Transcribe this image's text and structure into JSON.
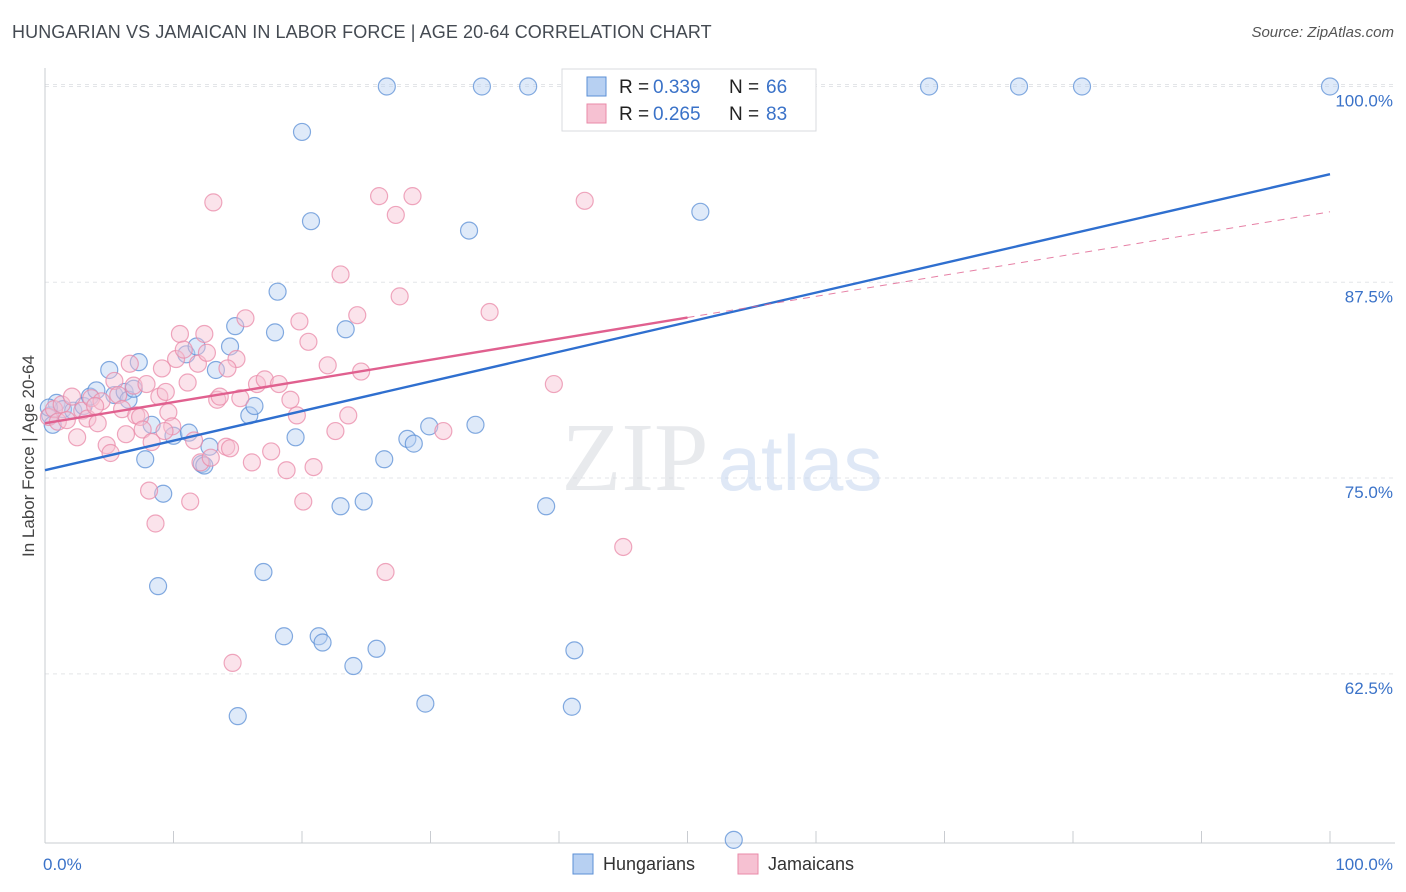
{
  "header": {
    "title": "HUNGARIAN VS JAMAICAN IN LABOR FORCE | AGE 20-64 CORRELATION CHART",
    "source": "Source: ZipAtlas.com"
  },
  "watermark": {
    "text_zip": "ZIP",
    "text_atlas": "atlas"
  },
  "chart_data": {
    "type": "scatter",
    "title": "HUNGARIAN VS JAMAICAN IN LABOR FORCE | AGE 20-64 CORRELATION CHART",
    "ylabel": "In Labor Force | Age 20-64",
    "xlabel": "",
    "xlim": [
      0,
      100
    ],
    "ylim": [
      51.7,
      101.5
    ],
    "x_tick_labels": [
      "0.0%",
      "100.0%"
    ],
    "y_ticks": [
      62.5,
      75.0,
      87.5,
      100.0
    ],
    "y_tick_labels": [
      "62.5%",
      "75.0%",
      "87.5%",
      "100.0%"
    ],
    "grid": true,
    "legend_placement": "top-center",
    "colors": {
      "hungarians": "#5b8fd6",
      "hungarians_fill": "#b7d0f2",
      "hungarians_line": "#2f6fcf",
      "jamaicans": "#e98aa8",
      "jamaicans_fill": "#f6c1d2",
      "jamaicans_line": "#e0608f",
      "tick_label": "#3a72c8"
    },
    "stats": [
      {
        "r_label": "R = ",
        "r_value": "0.339",
        "n_label": "N = ",
        "n_value": "66"
      },
      {
        "r_label": "R = ",
        "r_value": "0.265",
        "n_label": "N = ",
        "n_value": "83"
      }
    ],
    "series": [
      {
        "name": "Hungarians",
        "trend": {
          "x0": 0,
          "y0": 75.5,
          "x1": 100,
          "y1": 94.4,
          "dashed_from": null
        },
        "points": [
          [
            0.4,
            79.0
          ],
          [
            0.6,
            78.4
          ],
          [
            0.9,
            79.8
          ],
          [
            1.4,
            79.4
          ],
          [
            2.2,
            79.3
          ],
          [
            3.0,
            79.6
          ],
          [
            3.5,
            80.2
          ],
          [
            4.0,
            80.6
          ],
          [
            5.0,
            81.9
          ],
          [
            5.4,
            80.3
          ],
          [
            6.2,
            80.5
          ],
          [
            6.5,
            80.0
          ],
          [
            6.9,
            80.7
          ],
          [
            7.3,
            82.4
          ],
          [
            7.8,
            76.2
          ],
          [
            8.3,
            78.4
          ],
          [
            8.8,
            68.1
          ],
          [
            9.2,
            74.0
          ],
          [
            10.0,
            77.7
          ],
          [
            11.0,
            82.9
          ],
          [
            11.2,
            77.9
          ],
          [
            11.8,
            83.4
          ],
          [
            12.2,
            75.9
          ],
          [
            12.4,
            75.8
          ],
          [
            12.8,
            77.0
          ],
          [
            13.3,
            81.9
          ],
          [
            14.4,
            83.4
          ],
          [
            14.8,
            84.7
          ],
          [
            15.0,
            59.8
          ],
          [
            15.9,
            79.0
          ],
          [
            16.3,
            79.6
          ],
          [
            17.0,
            69.0
          ],
          [
            17.9,
            84.3
          ],
          [
            18.1,
            86.9
          ],
          [
            18.6,
            64.9
          ],
          [
            19.5,
            77.6
          ],
          [
            20.0,
            97.1
          ],
          [
            20.7,
            91.4
          ],
          [
            21.3,
            64.9
          ],
          [
            21.6,
            64.5
          ],
          [
            23.0,
            73.2
          ],
          [
            23.4,
            84.5
          ],
          [
            24.0,
            63.0
          ],
          [
            24.8,
            73.5
          ],
          [
            25.8,
            64.1
          ],
          [
            26.4,
            76.2
          ],
          [
            26.6,
            100.0
          ],
          [
            28.2,
            77.5
          ],
          [
            28.7,
            77.2
          ],
          [
            29.6,
            60.6
          ],
          [
            29.9,
            78.3
          ],
          [
            33.0,
            90.8
          ],
          [
            33.5,
            78.4
          ],
          [
            34.0,
            100.0
          ],
          [
            37.6,
            100.0
          ],
          [
            39.0,
            73.2
          ],
          [
            41.0,
            60.4
          ],
          [
            41.2,
            64.0
          ],
          [
            51.0,
            92.0
          ],
          [
            53.6,
            51.9
          ],
          [
            56.0,
            100.0
          ],
          [
            68.8,
            100.0
          ],
          [
            75.8,
            100.0
          ],
          [
            80.7,
            100.0
          ],
          [
            100.0,
            100.0
          ],
          [
            0.3,
            79.5
          ]
        ]
      },
      {
        "name": "Jamaicans",
        "trend": {
          "x0": 0,
          "y0": 78.5,
          "x1": 100,
          "y1": 92.0,
          "dashed_from": 50
        },
        "points": [
          [
            0.3,
            78.9
          ],
          [
            0.7,
            79.4
          ],
          [
            1.0,
            78.6
          ],
          [
            1.3,
            79.7
          ],
          [
            1.7,
            78.7
          ],
          [
            2.1,
            80.2
          ],
          [
            2.5,
            77.6
          ],
          [
            2.9,
            79.3
          ],
          [
            3.3,
            78.8
          ],
          [
            3.6,
            80.1
          ],
          [
            4.1,
            78.5
          ],
          [
            4.4,
            79.9
          ],
          [
            4.8,
            77.1
          ],
          [
            5.1,
            76.6
          ],
          [
            5.4,
            81.2
          ],
          [
            5.7,
            80.3
          ],
          [
            6.0,
            79.4
          ],
          [
            6.3,
            77.8
          ],
          [
            6.6,
            82.3
          ],
          [
            6.9,
            80.9
          ],
          [
            7.1,
            79.0
          ],
          [
            7.4,
            78.9
          ],
          [
            7.6,
            78.1
          ],
          [
            7.9,
            81.0
          ],
          [
            8.1,
            74.2
          ],
          [
            8.3,
            77.3
          ],
          [
            8.6,
            72.1
          ],
          [
            8.9,
            80.2
          ],
          [
            9.1,
            82.0
          ],
          [
            9.4,
            80.5
          ],
          [
            9.6,
            79.2
          ],
          [
            9.9,
            78.3
          ],
          [
            10.2,
            82.6
          ],
          [
            10.5,
            84.2
          ],
          [
            10.8,
            83.2
          ],
          [
            11.1,
            81.1
          ],
          [
            11.3,
            73.5
          ],
          [
            11.6,
            77.4
          ],
          [
            11.9,
            82.3
          ],
          [
            12.1,
            76.0
          ],
          [
            12.4,
            84.2
          ],
          [
            12.6,
            83.0
          ],
          [
            12.9,
            76.3
          ],
          [
            13.1,
            92.6
          ],
          [
            13.4,
            80.0
          ],
          [
            13.6,
            80.2
          ],
          [
            14.1,
            77.0
          ],
          [
            14.4,
            76.9
          ],
          [
            14.6,
            63.2
          ],
          [
            14.9,
            82.6
          ],
          [
            15.2,
            80.1
          ],
          [
            15.6,
            85.2
          ],
          [
            16.1,
            76.0
          ],
          [
            16.5,
            81.0
          ],
          [
            17.1,
            81.3
          ],
          [
            17.6,
            76.7
          ],
          [
            18.2,
            81.0
          ],
          [
            19.1,
            80.0
          ],
          [
            19.6,
            79.0
          ],
          [
            19.8,
            85.0
          ],
          [
            20.1,
            73.5
          ],
          [
            20.5,
            83.7
          ],
          [
            20.9,
            75.7
          ],
          [
            22.0,
            82.2
          ],
          [
            22.6,
            78.0
          ],
          [
            23.0,
            88.0
          ],
          [
            23.6,
            79.0
          ],
          [
            24.3,
            85.4
          ],
          [
            24.6,
            81.8
          ],
          [
            26.0,
            93.0
          ],
          [
            26.5,
            69.0
          ],
          [
            27.3,
            91.8
          ],
          [
            27.6,
            86.6
          ],
          [
            28.6,
            93.0
          ],
          [
            31.0,
            78.0
          ],
          [
            34.6,
            85.6
          ],
          [
            39.6,
            81.0
          ],
          [
            42.0,
            92.7
          ],
          [
            45.0,
            70.6
          ],
          [
            3.9,
            79.6
          ],
          [
            9.3,
            78.0
          ],
          [
            14.2,
            82.0
          ],
          [
            18.8,
            75.5
          ]
        ]
      }
    ],
    "legend": [
      "Hungarians",
      "Jamaicans"
    ]
  }
}
